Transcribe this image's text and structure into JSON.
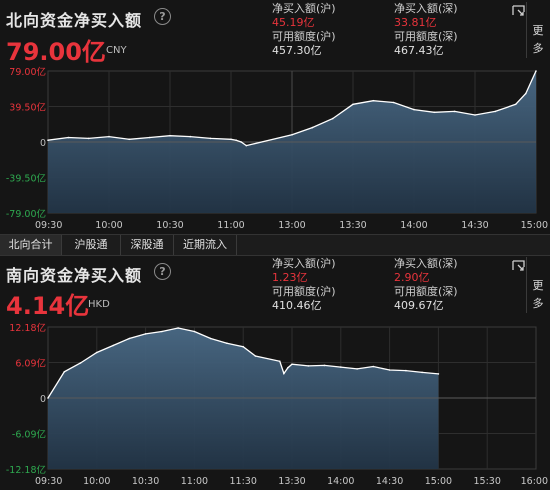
{
  "north": {
    "title": "北向资金净买入额",
    "help": "?",
    "amount": "79.00亿",
    "currency": "CNY",
    "sh_buy_label": "净买入额(沪)",
    "sh_buy_value": "45.19亿",
    "sz_buy_label": "净买入额(深)",
    "sz_buy_value": "33.81亿",
    "sh_quota_label": "可用额度(沪)",
    "sh_quota_value": "457.30亿",
    "sz_quota_label": "可用额度(深)",
    "sz_quota_value": "467.43亿",
    "more": "更多"
  },
  "tabs": [
    "北向合计",
    "沪股通",
    "深股通",
    "近期流入"
  ],
  "south": {
    "title": "南向资金净买入额",
    "help": "?",
    "amount": "4.14亿",
    "currency": "HKD",
    "sh_buy_label": "净买入额(沪)",
    "sh_buy_value": "1.23亿",
    "sz_buy_label": "净买入额(深)",
    "sz_buy_value": "2.90亿",
    "sh_quota_label": "可用额度(沪)",
    "sh_quota_value": "410.46亿",
    "sz_quota_label": "可用额度(深)",
    "sz_quota_value": "409.67亿",
    "more": "更多"
  },
  "colors": {
    "red": "#e8343c",
    "green": "#2ea84f",
    "line": "#ffffff",
    "fill_top": "#4a6a86",
    "fill_bottom": "#223446"
  },
  "chart_data": [
    {
      "type": "area",
      "ylim": [
        -79.0,
        79.0
      ],
      "yticks": [
        "79.00亿",
        "39.50亿",
        "0",
        "-39.50亿",
        "-79.00亿"
      ],
      "xticks": [
        "09:30",
        "10:00",
        "10:30",
        "11:00",
        "13:00",
        "13:30",
        "14:00",
        "14:30",
        "15:00"
      ],
      "series": [
        {
          "x": [
            "09:30",
            "09:40",
            "09:50",
            "10:00",
            "10:10",
            "10:20",
            "10:30",
            "10:40",
            "10:50",
            "11:00",
            "11:10",
            "11:20",
            "11:30",
            "13:00",
            "13:10",
            "13:20",
            "13:30",
            "13:40",
            "13:50",
            "14:00",
            "14:10",
            "14:20",
            "14:30",
            "14:40",
            "14:50",
            "14:55",
            "15:00"
          ],
          "y": [
            2,
            5,
            4,
            6,
            3,
            5,
            7,
            6,
            4,
            3,
            2,
            0,
            -4,
            8,
            16,
            26,
            42,
            46,
            44,
            36,
            33,
            34,
            30,
            34,
            42,
            54,
            79
          ]
        }
      ]
    },
    {
      "type": "area",
      "ylim": [
        -12.18,
        12.18
      ],
      "yticks": [
        "12.18亿",
        "6.09亿",
        "0",
        "-6.09亿",
        "-12.18亿"
      ],
      "xticks": [
        "09:30",
        "10:00",
        "10:30",
        "11:00",
        "11:30",
        "13:30",
        "14:00",
        "14:30",
        "15:00",
        "15:30",
        "16:00"
      ],
      "series": [
        {
          "x": [
            "09:30",
            "09:40",
            "09:50",
            "10:00",
            "10:10",
            "10:20",
            "10:30",
            "10:40",
            "10:50",
            "11:00",
            "11:10",
            "11:20",
            "11:30",
            "12:00",
            "13:00",
            "13:10",
            "13:20",
            "13:30",
            "13:40",
            "13:50",
            "14:00",
            "14:10",
            "14:20",
            "14:30",
            "14:40",
            "14:50",
            "15:00"
          ],
          "y": [
            0,
            4.5,
            6.0,
            7.8,
            9.0,
            10.2,
            11.0,
            11.4,
            12.0,
            11.4,
            10.2,
            9.4,
            8.8,
            7.2,
            6.3,
            4.2,
            5.2,
            5.8,
            5.5,
            5.6,
            5.3,
            5.0,
            5.4,
            4.8,
            4.7,
            4.4,
            4.14
          ]
        }
      ]
    }
  ]
}
